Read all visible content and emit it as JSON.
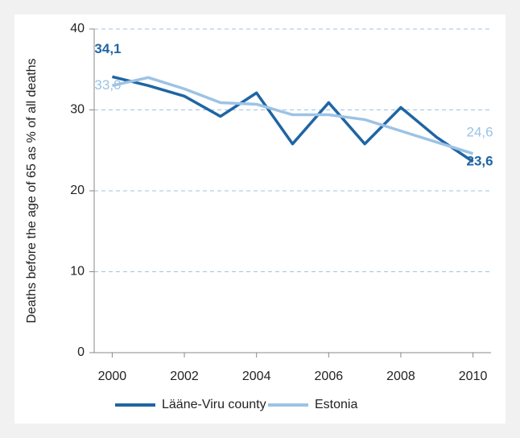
{
  "chart_data": {
    "type": "line",
    "ylabel": "Deaths before the age of 65 as % of all deaths",
    "x": [
      2000,
      2001,
      2002,
      2003,
      2004,
      2005,
      2006,
      2007,
      2008,
      2009,
      2010
    ],
    "xlim": [
      1999.5,
      2010.5
    ],
    "xticks": [
      2000,
      2002,
      2004,
      2006,
      2008,
      2010
    ],
    "ylim": [
      0,
      40
    ],
    "yticks": [
      0,
      10,
      20,
      30,
      40
    ],
    "grid": true,
    "legend": "bottom",
    "series": [
      {
        "name": "Lääne-Viru county",
        "color": "#1f65a3",
        "values": [
          34.1,
          33.0,
          31.7,
          29.2,
          32.1,
          25.8,
          30.9,
          25.8,
          30.3,
          26.6,
          23.6
        ],
        "value_labels": [
          "34,1",
          null,
          null,
          null,
          null,
          null,
          null,
          null,
          null,
          null,
          "23,6"
        ]
      },
      {
        "name": "Estonia",
        "color": "#9cc3e5",
        "values": [
          33.0,
          34.0,
          32.6,
          30.9,
          30.7,
          29.4,
          29.4,
          28.8,
          27.4,
          26.0,
          24.6
        ],
        "value_labels": [
          "33,0",
          null,
          null,
          null,
          null,
          null,
          null,
          null,
          null,
          null,
          "24,6"
        ]
      }
    ]
  }
}
